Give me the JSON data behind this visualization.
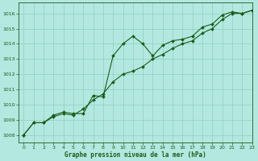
{
  "title": "Graphe pression niveau de la mer (hPa)",
  "bg_color": "#b3e8e0",
  "line_color": "#1a5c1a",
  "marker_color": "#1a5c1a",
  "grid_color": "#8ecfbf",
  "text_color": "#1a5c1a",
  "xlim": [
    -0.5,
    23
  ],
  "ylim": [
    1007.5,
    1016.7
  ],
  "yticks": [
    1008,
    1009,
    1010,
    1011,
    1012,
    1013,
    1014,
    1015,
    1016
  ],
  "xticks": [
    0,
    1,
    2,
    3,
    4,
    5,
    6,
    7,
    8,
    9,
    10,
    11,
    12,
    13,
    14,
    15,
    16,
    17,
    18,
    19,
    20,
    21,
    22,
    23
  ],
  "series1_x": [
    0,
    1,
    2,
    3,
    4,
    5,
    6,
    7,
    8,
    9,
    10,
    11,
    12,
    13,
    14,
    15,
    16,
    17,
    18,
    19,
    20,
    21,
    22,
    23
  ],
  "series1_y": [
    1008.0,
    1008.8,
    1008.8,
    1009.3,
    1009.5,
    1009.4,
    1009.4,
    1010.6,
    1010.5,
    1013.2,
    1014.0,
    1014.5,
    1014.0,
    1013.2,
    1013.9,
    1014.2,
    1014.3,
    1014.5,
    1015.1,
    1015.3,
    1015.9,
    1016.1,
    1016.0,
    1016.2
  ],
  "series2_x": [
    0,
    1,
    2,
    3,
    4,
    5,
    6,
    7,
    8,
    9,
    10,
    11,
    12,
    13,
    14,
    15,
    16,
    17,
    18,
    19,
    20,
    21,
    22,
    23
  ],
  "series2_y": [
    1008.0,
    1008.8,
    1008.8,
    1009.2,
    1009.4,
    1009.3,
    1009.7,
    1010.3,
    1010.7,
    1011.5,
    1012.0,
    1012.2,
    1012.5,
    1013.0,
    1013.3,
    1013.7,
    1014.0,
    1014.2,
    1014.7,
    1015.0,
    1015.6,
    1016.0,
    1016.0,
    1016.2
  ]
}
